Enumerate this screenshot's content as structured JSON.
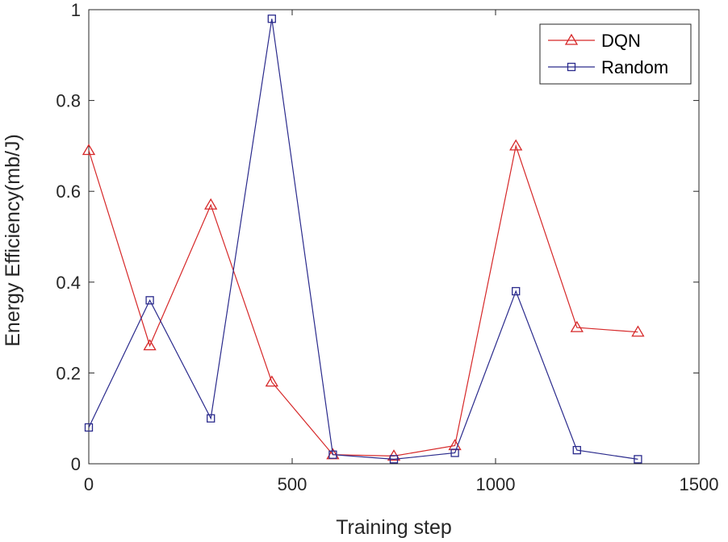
{
  "chart_data": {
    "type": "line",
    "xlabel": "Training step",
    "ylabel": "Energy Efficiency(mb/J)",
    "xlim": [
      0,
      1500
    ],
    "ylim": [
      0,
      1
    ],
    "xticks": [
      0,
      500,
      1000,
      1500
    ],
    "yticks": [
      0,
      0.2,
      0.4,
      0.6,
      0.8,
      1
    ],
    "xtick_labels": [
      "0",
      "500",
      "1000",
      "1500"
    ],
    "ytick_labels": [
      "0",
      "0.2",
      "0.4",
      "0.6",
      "0.8",
      "1"
    ],
    "grid": false,
    "legend_position": "top-right",
    "series": [
      {
        "name": "DQN",
        "color": "#d62728",
        "marker": "triangle",
        "x": [
          0,
          150,
          300,
          450,
          600,
          750,
          900,
          1050,
          1200,
          1350
        ],
        "values": [
          0.69,
          0.26,
          0.57,
          0.18,
          0.02,
          0.017,
          0.04,
          0.7,
          0.3,
          0.29
        ]
      },
      {
        "name": "Random",
        "color": "#2a2a8c",
        "marker": "square",
        "x": [
          0,
          150,
          300,
          450,
          600,
          750,
          900,
          1050,
          1200,
          1350
        ],
        "values": [
          0.08,
          0.36,
          0.1,
          0.98,
          0.02,
          0.01,
          0.024,
          0.38,
          0.03,
          0.01
        ]
      }
    ]
  }
}
